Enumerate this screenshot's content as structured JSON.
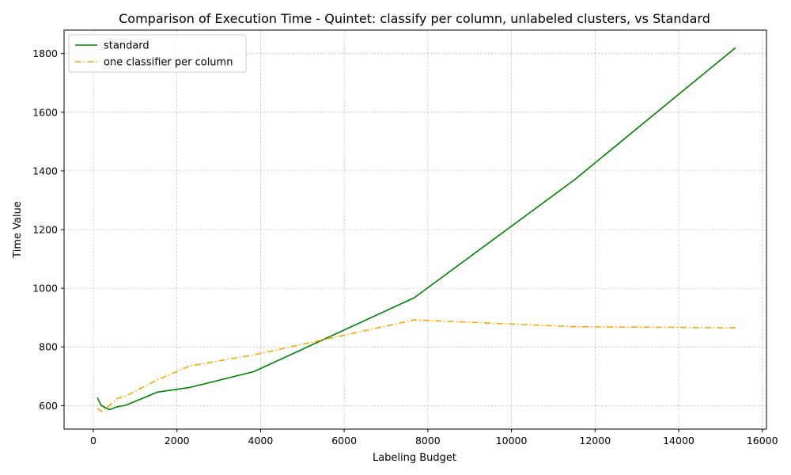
{
  "chart_data": {
    "type": "line",
    "title": "Comparison of Execution Time - Quintet: classify per column, unlabeled clusters, vs Standard",
    "xlabel": "Labeling Budget",
    "ylabel": "Time Value",
    "xlim": [
      -700,
      16100
    ],
    "ylim": [
      520,
      1880
    ],
    "xticks": [
      0,
      2000,
      4000,
      6000,
      8000,
      10000,
      12000,
      14000,
      16000
    ],
    "yticks": [
      600,
      800,
      1000,
      1200,
      1400,
      1600,
      1800
    ],
    "grid": true,
    "legend_position": "top-left",
    "series": [
      {
        "name": "standard",
        "color": "#008000",
        "style": "solid",
        "x": [
          96,
          192,
          384,
          576,
          768,
          1536,
          2304,
          3840,
          7680,
          11520,
          15360
        ],
        "y": [
          627,
          600,
          586,
          596,
          601,
          646,
          662,
          716,
          968,
          1371,
          1820
        ]
      },
      {
        "name": "one classifier per column",
        "color": "#ffa500",
        "style": "dashdot",
        "x": [
          96,
          192,
          384,
          576,
          768,
          1536,
          2304,
          3840,
          7680,
          11520,
          15360
        ],
        "y": [
          591,
          580,
          600,
          625,
          632,
          688,
          735,
          773,
          892,
          869,
          865
        ]
      }
    ]
  }
}
